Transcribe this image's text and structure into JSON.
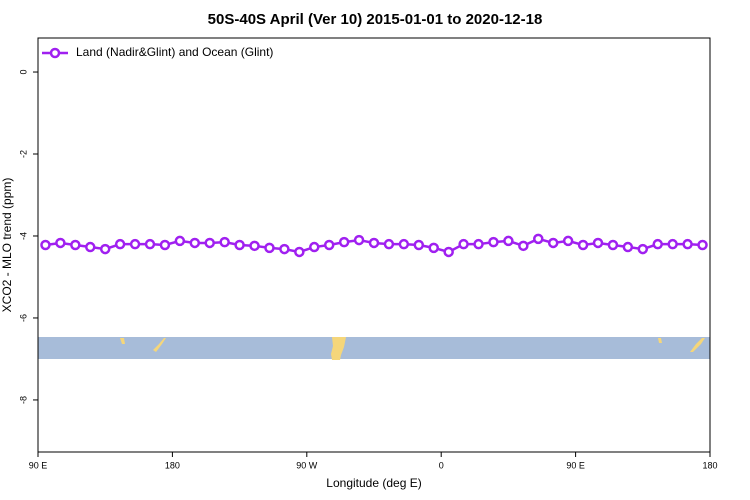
{
  "chart_data": {
    "type": "line",
    "title": "50S-40S April (Ver 10)   2015-01-01 to 2020-12-18",
    "xlabel": "Longitude (deg E)",
    "ylabel": "XCO2 - MLO trend (ppm)",
    "x": [
      95,
      105,
      115,
      125,
      135,
      145,
      155,
      165,
      175,
      185,
      195,
      205,
      215,
      225,
      235,
      245,
      255,
      265,
      275,
      285,
      295,
      305,
      315,
      325,
      335,
      345,
      355,
      365,
      375,
      385,
      395,
      405,
      415,
      425,
      435,
      445,
      455,
      465,
      475,
      485,
      495,
      505,
      515,
      525,
      535
    ],
    "series": [
      {
        "name": "Land (Nadir&Glint) and Ocean (Glint)",
        "color": "#a020f0",
        "values": [
          -4.22,
          -4.17,
          -4.22,
          -4.27,
          -4.32,
          -4.2,
          -4.2,
          -4.2,
          -4.22,
          -4.12,
          -4.17,
          -4.17,
          -4.15,
          -4.22,
          -4.24,
          -4.29,
          -4.32,
          -4.39,
          -4.27,
          -4.22,
          -4.15,
          -4.1,
          -4.17,
          -4.2,
          -4.2,
          -4.22,
          -4.29,
          -4.39,
          -4.2,
          -4.2,
          -4.15,
          -4.12,
          -4.24,
          -4.07,
          -4.17,
          -4.12,
          -4.22,
          -4.17,
          -4.22,
          -4.27,
          -4.32,
          -4.2,
          -4.2,
          -4.2,
          -4.22
        ]
      }
    ],
    "xlim": [
      90,
      540
    ],
    "xticks": [
      {
        "value": 90,
        "label": "90 E"
      },
      {
        "value": 180,
        "label": "180"
      },
      {
        "value": 270,
        "label": "90 W"
      },
      {
        "value": 360,
        "label": "0"
      },
      {
        "value": 450,
        "label": "90 E"
      },
      {
        "value": 540,
        "label": "180"
      }
    ],
    "ylim": [
      -9.27,
      0.83
    ],
    "yticks": [
      0,
      -2,
      -4,
      -6,
      -8
    ],
    "legend": "top-left"
  }
}
